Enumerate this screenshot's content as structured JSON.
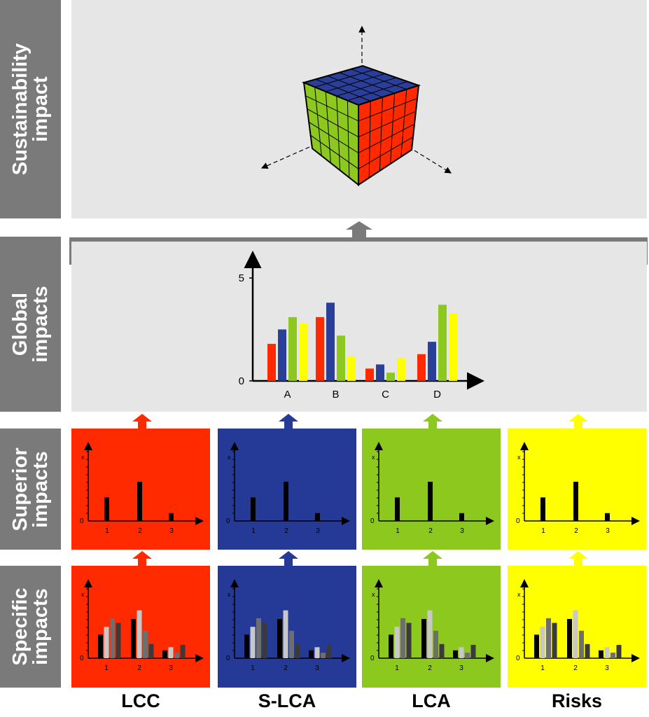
{
  "rows": [
    {
      "label": "Sustainability\nimpact"
    },
    {
      "label": "Global\nimpacts"
    },
    {
      "label": "Superior\nimpacts"
    },
    {
      "label": "Specific\nimpacts"
    }
  ],
  "columns": [
    {
      "label": "LCC",
      "color": "#ff2a00"
    },
    {
      "label": "S-LCA",
      "color": "#243a96"
    },
    {
      "label": "LCA",
      "color": "#8cc81e"
    },
    {
      "label": "Risks",
      "color": "#ffff00"
    }
  ],
  "cube_colors": {
    "top": "#2a3f9a",
    "left": "#8cc81e",
    "right": "#ff2a00"
  },
  "chart_data": [
    {
      "type": "bar",
      "categories": [
        "A",
        "B",
        "C",
        "D"
      ],
      "series": [
        {
          "values": [
            1.8,
            3.1,
            0.6,
            1.3
          ],
          "color": "#ff2a00"
        },
        {
          "values": [
            2.5,
            3.8,
            0.8,
            1.9
          ],
          "color": "#2a3f9a"
        },
        {
          "values": [
            3.1,
            2.2,
            0.4,
            3.7
          ],
          "color": "#8cc81e"
        },
        {
          "values": [
            2.8,
            1.2,
            1.1,
            3.3
          ],
          "color": "#ffff00"
        }
      ],
      "yticks": [
        "0",
        "5"
      ],
      "ylim": [
        0,
        5
      ]
    },
    {
      "type": "bar",
      "categories": [
        "1",
        "2",
        "3"
      ],
      "values": [
        3,
        5,
        1
      ],
      "ylabel": "x",
      "yzero": "0"
    },
    {
      "type": "bar",
      "categories": [
        "1",
        "2",
        "3"
      ],
      "series": [
        {
          "values": [
            3.0,
            5.0,
            1.0
          ],
          "color": "#000000"
        },
        {
          "values": [
            4.0,
            6.1,
            1.4
          ],
          "color": "#c8c8c8"
        },
        {
          "values": [
            5.1,
            3.5,
            0.7
          ],
          "color": "#6e6e6e"
        },
        {
          "values": [
            4.5,
            1.8,
            1.7
          ],
          "color": "#3a3a3a"
        }
      ],
      "ylabel": "x",
      "yzero": "0"
    }
  ]
}
